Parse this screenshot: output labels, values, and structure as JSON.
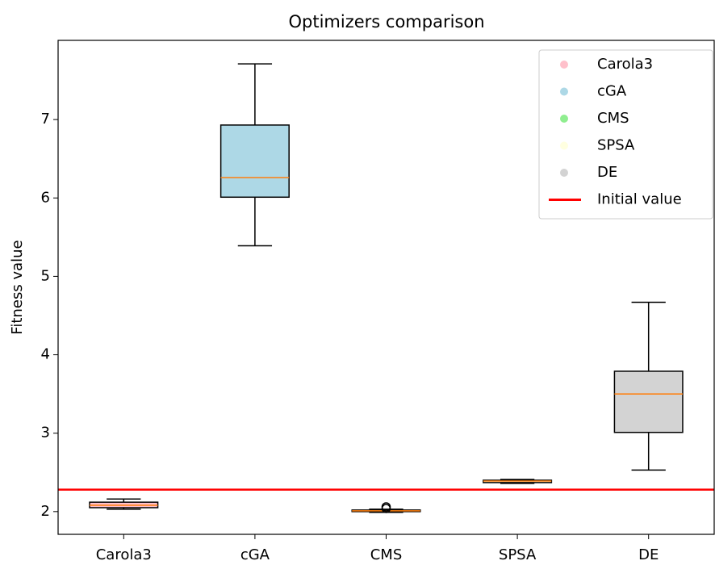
{
  "chart_data": {
    "type": "box",
    "title": "Optimizers comparison",
    "ylabel": "Fitness value",
    "categories": [
      "Carola3",
      "cGA",
      "CMS",
      "SPSA",
      "DE"
    ],
    "colors": [
      "pink",
      "lightblue",
      "lightgreen",
      "lightyellow",
      "lightgray"
    ],
    "median_color": "#ff7f0e",
    "boxes": [
      {
        "whislo": 2.03,
        "q1": 2.05,
        "med": 2.08,
        "q3": 2.12,
        "whishi": 2.16,
        "fliers": []
      },
      {
        "whislo": 5.39,
        "q1": 6.01,
        "med": 6.26,
        "q3": 6.93,
        "whishi": 7.71,
        "fliers": []
      },
      {
        "whislo": 1.99,
        "q1": 2.0,
        "med": 2.01,
        "q3": 2.02,
        "whishi": 2.03,
        "fliers": [
          2.04,
          2.06
        ]
      },
      {
        "whislo": 2.36,
        "q1": 2.37,
        "med": 2.39,
        "q3": 2.4,
        "whishi": 2.41,
        "fliers": []
      },
      {
        "whislo": 2.53,
        "q1": 3.01,
        "med": 3.5,
        "q3": 3.79,
        "whishi": 4.67,
        "fliers": []
      }
    ],
    "hline": {
      "name": "Initial value",
      "value": 2.28,
      "color": "red"
    },
    "ylim": [
      1.71,
      8.01
    ],
    "yticks": [
      2,
      3,
      4,
      5,
      6,
      7
    ],
    "legend": "upper right"
  }
}
